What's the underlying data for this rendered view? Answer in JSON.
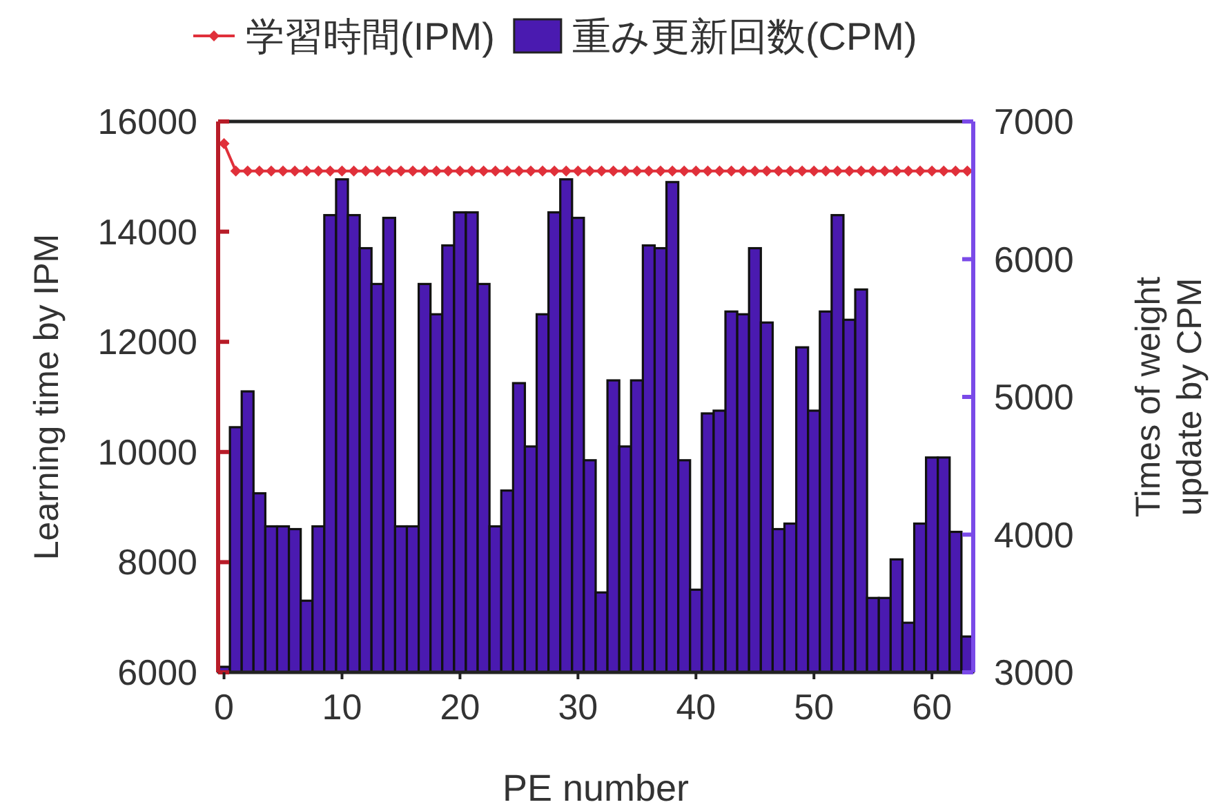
{
  "chart_data": {
    "type": "bar",
    "xlabel": "PE number",
    "ylabel": "Learning time by IPM",
    "y2label": "Times of weight update by CPM",
    "x": [
      0,
      1,
      2,
      3,
      4,
      5,
      6,
      7,
      8,
      9,
      10,
      11,
      12,
      13,
      14,
      15,
      16,
      17,
      18,
      19,
      20,
      21,
      22,
      23,
      24,
      25,
      26,
      27,
      28,
      29,
      30,
      31,
      32,
      33,
      34,
      35,
      36,
      37,
      38,
      39,
      40,
      41,
      42,
      43,
      44,
      45,
      46,
      47,
      48,
      49,
      50,
      51,
      52,
      53,
      54,
      55,
      56,
      57,
      58,
      59,
      60,
      61,
      62,
      63
    ],
    "series": [
      {
        "name": "学習時間(IPM)",
        "type": "line",
        "color": "#e0303a",
        "values": [
          15600,
          15100,
          15100,
          15100,
          15100,
          15100,
          15100,
          15100,
          15100,
          15100,
          15100,
          15100,
          15100,
          15100,
          15100,
          15100,
          15100,
          15100,
          15100,
          15100,
          15100,
          15100,
          15100,
          15100,
          15100,
          15100,
          15100,
          15100,
          15100,
          15100,
          15100,
          15100,
          15100,
          15100,
          15100,
          15100,
          15100,
          15100,
          15100,
          15100,
          15100,
          15100,
          15100,
          15100,
          15100,
          15100,
          15100,
          15100,
          15100,
          15100,
          15100,
          15100,
          15100,
          15100,
          15100,
          15100,
          15100,
          15100,
          15100,
          15100,
          15100,
          15100,
          15100,
          15100
        ]
      },
      {
        "name": "重み更新回数(CPM)",
        "axis": "y2",
        "color": "#4a1ab0",
        "values": [
          3040,
          4780,
          5040,
          4300,
          4060,
          4060,
          4040,
          3520,
          4060,
          6320,
          6580,
          6320,
          6080,
          5820,
          6300,
          4060,
          4060,
          5820,
          5600,
          6100,
          6340,
          6340,
          5820,
          4060,
          4320,
          5100,
          4640,
          5600,
          6340,
          6580,
          6300,
          4540,
          3580,
          5120,
          4640,
          5120,
          6100,
          6080,
          6560,
          4540,
          3600,
          4880,
          4900,
          5620,
          5600,
          6080,
          5540,
          4040,
          4080,
          5360,
          4900,
          5620,
          6320,
          5560,
          5780,
          3540,
          3540,
          3820,
          3360,
          4080,
          4560,
          4560,
          4020,
          3260
        ]
      }
    ],
    "xlim": [
      -0.5,
      63.5
    ],
    "xticks": [
      0,
      10,
      20,
      30,
      40,
      50,
      60
    ],
    "ylim": [
      6000,
      16000
    ],
    "yticks": [
      6000,
      8000,
      10000,
      12000,
      14000,
      16000
    ],
    "y2lim": [
      3000,
      7000
    ],
    "y2ticks": [
      3000,
      4000,
      5000,
      6000,
      7000
    ],
    "marker": "diamond",
    "legend": "top"
  }
}
